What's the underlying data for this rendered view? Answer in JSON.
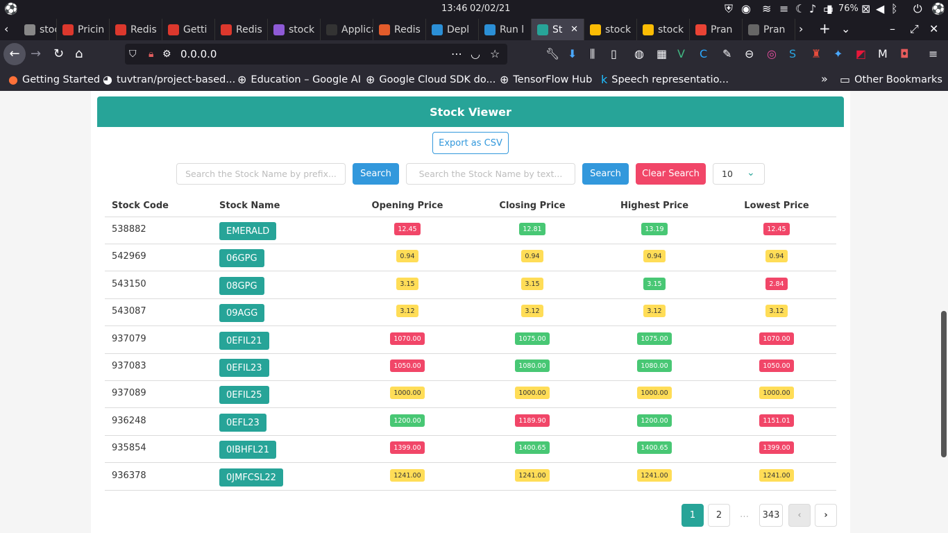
{
  "system": {
    "time": "13:46",
    "date": "02/02/21",
    "battery": "76%"
  },
  "tabs": [
    {
      "label": "stock",
      "color": "#888888"
    },
    {
      "label": "Pricin",
      "color": "#dc382d"
    },
    {
      "label": "Redis",
      "color": "#dc382d"
    },
    {
      "label": "Getti",
      "color": "#dc382d"
    },
    {
      "label": "Redis",
      "color": "#dc382d"
    },
    {
      "label": "stock",
      "color": "#8e5ad6"
    },
    {
      "label": "Applicat",
      "color": "#333333"
    },
    {
      "label": "Redis",
      "color": "#e35c2b"
    },
    {
      "label": "Depl",
      "color": "#2b8fd6"
    },
    {
      "label": "Run l",
      "color": "#2b8fd6"
    },
    {
      "label": "St",
      "color": "#27a498"
    },
    {
      "label": "stock",
      "color": "#fbbc04"
    },
    {
      "label": "stock",
      "color": "#fbbc04"
    },
    {
      "label": "Pran",
      "color": "#ea4335"
    },
    {
      "label": "Pran",
      "color": "#666666"
    }
  ],
  "url": "0.0.0.0",
  "bookmarks": [
    {
      "label": "Getting Started"
    },
    {
      "label": "tuvtran/project-based..."
    },
    {
      "label": "Education – Google AI"
    },
    {
      "label": "Google Cloud SDK do..."
    },
    {
      "label": "TensorFlow Hub"
    },
    {
      "label": "Speech representatio..."
    }
  ],
  "other_bookmarks": "Other Bookmarks",
  "app": {
    "title": "Stock Viewer",
    "export_label": "Export as CSV",
    "search_prefix_placeholder": "Search the Stock Name by prefix...",
    "search_text_placeholder": "Search the Stock Name by text...",
    "search_label": "Search",
    "clear_label": "Clear Search",
    "page_size": "10"
  },
  "table": {
    "headers": [
      "Stock Code",
      "Stock Name",
      "Opening Price",
      "Closing Price",
      "Highest Price",
      "Lowest Price"
    ],
    "rows": [
      {
        "code": "538882",
        "name": "EMERALD",
        "open": {
          "v": "12.45",
          "c": "red"
        },
        "close": {
          "v": "12.81",
          "c": "green"
        },
        "high": {
          "v": "13.19",
          "c": "green"
        },
        "low": {
          "v": "12.45",
          "c": "red"
        }
      },
      {
        "code": "542969",
        "name": "06GPG",
        "open": {
          "v": "0.94",
          "c": "yellow"
        },
        "close": {
          "v": "0.94",
          "c": "yellow"
        },
        "high": {
          "v": "0.94",
          "c": "yellow"
        },
        "low": {
          "v": "0.94",
          "c": "yellow"
        }
      },
      {
        "code": "543150",
        "name": "08GPG",
        "open": {
          "v": "3.15",
          "c": "yellow"
        },
        "close": {
          "v": "3.15",
          "c": "yellow"
        },
        "high": {
          "v": "3.15",
          "c": "green"
        },
        "low": {
          "v": "2.84",
          "c": "red"
        }
      },
      {
        "code": "543087",
        "name": "09AGG",
        "open": {
          "v": "3.12",
          "c": "yellow"
        },
        "close": {
          "v": "3.12",
          "c": "yellow"
        },
        "high": {
          "v": "3.12",
          "c": "yellow"
        },
        "low": {
          "v": "3.12",
          "c": "yellow"
        }
      },
      {
        "code": "937079",
        "name": "0EFIL21",
        "open": {
          "v": "1070.00",
          "c": "red"
        },
        "close": {
          "v": "1075.00",
          "c": "green"
        },
        "high": {
          "v": "1075.00",
          "c": "green"
        },
        "low": {
          "v": "1070.00",
          "c": "red"
        }
      },
      {
        "code": "937083",
        "name": "0EFIL23",
        "open": {
          "v": "1050.00",
          "c": "red"
        },
        "close": {
          "v": "1080.00",
          "c": "green"
        },
        "high": {
          "v": "1080.00",
          "c": "green"
        },
        "low": {
          "v": "1050.00",
          "c": "red"
        }
      },
      {
        "code": "937089",
        "name": "0EFIL25",
        "open": {
          "v": "1000.00",
          "c": "yellow"
        },
        "close": {
          "v": "1000.00",
          "c": "yellow"
        },
        "high": {
          "v": "1000.00",
          "c": "yellow"
        },
        "low": {
          "v": "1000.00",
          "c": "yellow"
        }
      },
      {
        "code": "936248",
        "name": "0EFL23",
        "open": {
          "v": "1200.00",
          "c": "green"
        },
        "close": {
          "v": "1189.90",
          "c": "red"
        },
        "high": {
          "v": "1200.00",
          "c": "green"
        },
        "low": {
          "v": "1151.01",
          "c": "red"
        }
      },
      {
        "code": "935854",
        "name": "0IBHFL21",
        "open": {
          "v": "1399.00",
          "c": "red"
        },
        "close": {
          "v": "1400.65",
          "c": "green"
        },
        "high": {
          "v": "1400.65",
          "c": "green"
        },
        "low": {
          "v": "1399.00",
          "c": "red"
        }
      },
      {
        "code": "936378",
        "name": "0JMFCSL22",
        "open": {
          "v": "1241.00",
          "c": "yellow"
        },
        "close": {
          "v": "1241.00",
          "c": "yellow"
        },
        "high": {
          "v": "1241.00",
          "c": "yellow"
        },
        "low": {
          "v": "1241.00",
          "c": "yellow"
        }
      }
    ]
  },
  "pagination": {
    "pages": [
      "1",
      "2"
    ],
    "ellipsis": "…",
    "last": "343",
    "current": "1",
    "prev": "‹",
    "next": "›"
  },
  "colors": {
    "accent": "#27a498",
    "search": "#3298dc",
    "danger": "#f14668",
    "success": "#48c774",
    "warning": "#ffdd57"
  }
}
